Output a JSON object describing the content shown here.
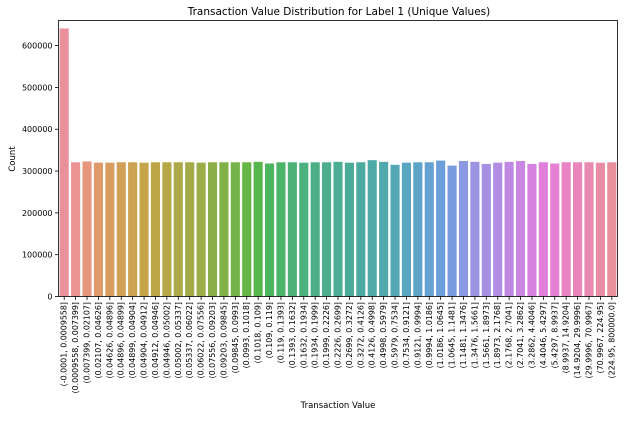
{
  "chart_data": {
    "type": "bar",
    "title": "Transaction Value Distribution for Label 1 (Unique Values)",
    "xlabel": "Transaction Value",
    "ylabel": "Count",
    "ylim": [
      0,
      660000
    ],
    "yticks": [
      0,
      100000,
      200000,
      300000,
      400000,
      500000,
      600000
    ],
    "ytick_labels": [
      "0",
      "100000",
      "200000",
      "300000",
      "400000",
      "500000",
      "600000"
    ],
    "grid": false,
    "categories": [
      "(-0.0001, 0.0009558]",
      "(0.0009558, 0.007399]",
      "(0.007399, 0.02107]",
      "(0.02107, 0.04626]",
      "(0.04626, 0.04896]",
      "(0.04896, 0.04899]",
      "(0.04899, 0.04904]",
      "(0.04904, 0.04912]",
      "(0.04912, 0.04946]",
      "(0.04946, 0.05002]",
      "(0.05002, 0.05337]",
      "(0.05337, 0.06022]",
      "(0.06022, 0.07556]",
      "(0.07556, 0.09203]",
      "(0.09203, 0.09845]",
      "(0.09845, 0.0993]",
      "(0.0993, 0.1018]",
      "(0.1018, 0.109]",
      "(0.109, 0.119]",
      "(0.119, 0.1393]",
      "(0.1393, 0.1632]",
      "(0.1632, 0.1934]",
      "(0.1934, 0.1999]",
      "(0.1999, 0.2226]",
      "(0.2226, 0.2699]",
      "(0.2699, 0.3272]",
      "(0.3272, 0.4126]",
      "(0.4126, 0.4998]",
      "(0.4998, 0.5979]",
      "(0.5979, 0.7534]",
      "(0.7534, 0.9121]",
      "(0.9121, 0.9994]",
      "(0.9994, 1.0186]",
      "(1.0186, 1.0645]",
      "(1.0645, 1.1481]",
      "(1.1481, 1.3476]",
      "(1.3476, 1.5661]",
      "(1.5661, 1.8973]",
      "(1.8973, 2.1768]",
      "(2.1768, 2.7041]",
      "(2.7041, 3.2862]",
      "(3.2862, 4.4046]",
      "(4.4046, 5.4297]",
      "(5.4297, 8.9937]",
      "(8.9937, 14.9204]",
      "(14.9204, 29.9996]",
      "(29.9996, 70.9967]",
      "(70.9967, 224.95]",
      "(224.95, 800000.0]"
    ],
    "values": [
      641000,
      321000,
      323000,
      320000,
      320000,
      321000,
      321000,
      320000,
      321000,
      321000,
      321000,
      321000,
      320000,
      321000,
      321000,
      321000,
      321000,
      322000,
      318000,
      321000,
      321000,
      320000,
      321000,
      321000,
      322000,
      320000,
      321000,
      326000,
      322000,
      315000,
      320000,
      321000,
      321000,
      325000,
      313000,
      324000,
      322000,
      317000,
      320000,
      322000,
      324000,
      317000,
      321000,
      318000,
      321000,
      321000,
      321000,
      320000,
      321000
    ],
    "colors": [
      "#e9919b",
      "#e99393",
      "#e6967d",
      "#df9a6c",
      "#d99e5f",
      "#d3a058",
      "#cda250",
      "#c5a449",
      "#bea647",
      "#b6a847",
      "#ada948",
      "#a5aa48",
      "#9aad47",
      "#8eaf47",
      "#82b147",
      "#74b347",
      "#66b547",
      "#57b74c",
      "#4db560",
      "#4db46c",
      "#4db276",
      "#4db07f",
      "#4caf86",
      "#4cae8d",
      "#4cad94",
      "#4cac9a",
      "#4caba0",
      "#4eaaa7",
      "#51a9ae",
      "#54a8b6",
      "#58a6bf",
      "#5da4c8",
      "#63a2d1",
      "#6a9fda",
      "#7b9be0",
      "#8b98e2",
      "#9a94e3",
      "#a790e3",
      "#b38ce3",
      "#bf88e3",
      "#cb85e2",
      "#d782e0",
      "#e17fdc",
      "#e680d2",
      "#e883c6",
      "#e886bb",
      "#e989b0",
      "#e98ca6",
      "#e98f9e"
    ]
  }
}
